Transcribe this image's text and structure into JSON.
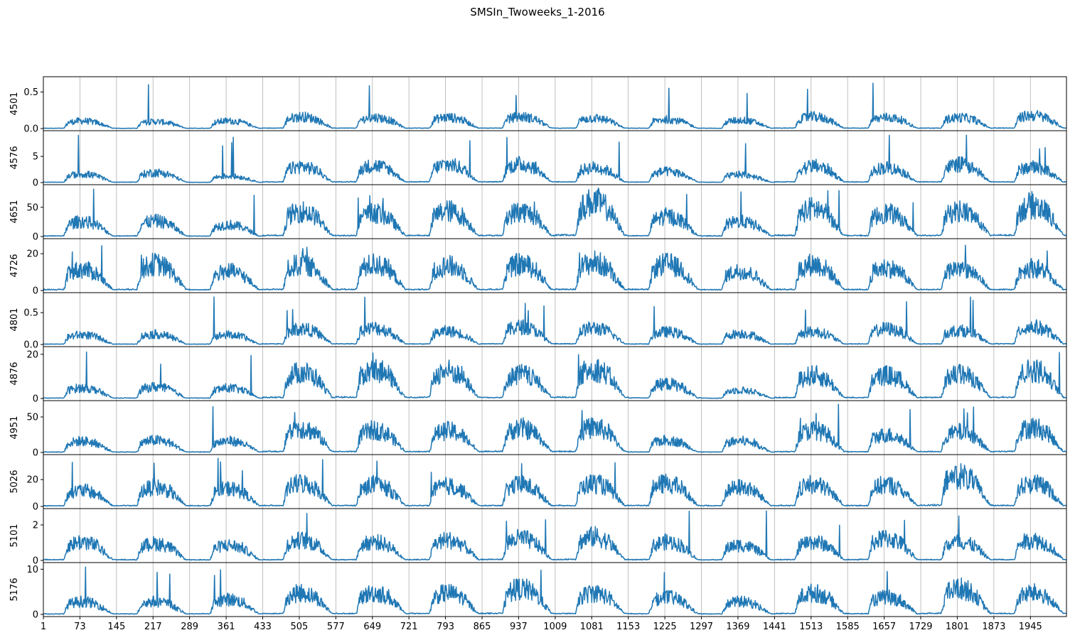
{
  "chart_data": {
    "type": "line",
    "title": "SMSIn_Twoweeks_1-2016",
    "x_range": [
      1,
      2016
    ],
    "x_ticks": [
      1,
      73,
      145,
      217,
      289,
      361,
      433,
      505,
      577,
      649,
      721,
      793,
      865,
      937,
      1009,
      1081,
      1153,
      1225,
      1297,
      1369,
      1441,
      1513,
      1585,
      1657,
      1729,
      1801,
      1873,
      1945
    ],
    "grid_x": true,
    "line_color": "#1f77b4",
    "panels": [
      {
        "name": "4501",
        "ylim": [
          0,
          0.68
        ],
        "yticks": [
          0.0,
          0.5
        ],
        "ytick_labels": [
          "0.0",
          "0.5"
        ],
        "daily_levels": [
          0.11,
          0.1,
          0.11,
          0.17,
          0.16,
          0.16,
          0.17,
          0.15,
          0.13,
          0.12,
          0.17,
          0.16,
          0.16,
          0.19
        ],
        "peak": 0.63
      },
      {
        "name": "4576",
        "ylim": [
          0,
          9.5
        ],
        "yticks": [
          0,
          5
        ],
        "ytick_labels": [
          "0",
          "5"
        ],
        "daily_levels": [
          1.7,
          2.0,
          1.3,
          3.2,
          3.4,
          3.6,
          3.7,
          3.0,
          2.2,
          1.6,
          3.3,
          3.0,
          3.6,
          3.1
        ],
        "peak": 9.1
      },
      {
        "name": "4651",
        "ylim": [
          0,
          85
        ],
        "yticks": [
          0,
          50
        ],
        "ytick_labels": [
          "0",
          "50"
        ],
        "daily_levels": [
          27,
          28,
          21,
          45,
          42,
          46,
          45,
          62,
          36,
          27,
          50,
          42,
          46,
          56
        ],
        "peak": 82
      },
      {
        "name": "4726",
        "ylim": [
          0,
          27
        ],
        "yticks": [
          0,
          20
        ],
        "ytick_labels": [
          "0",
          "20"
        ],
        "daily_levels": [
          12,
          15,
          11,
          15,
          15,
          14,
          15,
          16,
          15,
          11,
          15,
          13,
          13,
          13
        ],
        "peak": 26
      },
      {
        "name": "4801",
        "ylim": [
          0,
          0.78
        ],
        "yticks": [
          0.0,
          0.5
        ],
        "ytick_labels": [
          "0.0",
          "0.5"
        ],
        "daily_levels": [
          0.16,
          0.17,
          0.16,
          0.26,
          0.27,
          0.22,
          0.29,
          0.27,
          0.21,
          0.18,
          0.21,
          0.26,
          0.23,
          0.29
        ],
        "peak": 0.75
      },
      {
        "name": "4876",
        "ylim": [
          0,
          22.5
        ],
        "yticks": [
          0,
          20
        ],
        "ytick_labels": [
          "0",
          "20"
        ],
        "daily_levels": [
          5,
          5.5,
          5,
          12.5,
          13.5,
          13,
          11.5,
          14,
          7,
          4,
          11,
          11,
          11.5,
          13.5
        ],
        "peak": 22
      },
      {
        "name": "4951",
        "ylim": [
          0,
          70
        ],
        "yticks": [
          0,
          50
        ],
        "ytick_labels": [
          "0",
          "50"
        ],
        "daily_levels": [
          17,
          18,
          17,
          36,
          33,
          32,
          36,
          37,
          18,
          17,
          33,
          26,
          30,
          37
        ],
        "peak": 68
      },
      {
        "name": "5026",
        "ylim": [
          0,
          37
        ],
        "yticks": [
          0,
          20
        ],
        "ytick_labels": [
          "0",
          "20"
        ],
        "daily_levels": [
          12.5,
          15,
          14,
          18,
          17,
          16,
          17,
          18,
          18,
          15,
          17,
          17,
          24,
          18
        ],
        "peak": 36
      },
      {
        "name": "5101",
        "ylim": [
          0,
          2.8
        ],
        "yticks": [
          0,
          2
        ],
        "ytick_labels": [
          "0",
          "2"
        ],
        "daily_levels": [
          1.1,
          1.0,
          0.9,
          1.2,
          1.1,
          1.2,
          1.3,
          1.4,
          1.1,
          0.9,
          1.1,
          1.3,
          1.1,
          1.2
        ],
        "peak": 2.8
      },
      {
        "name": "5176",
        "ylim": [
          0,
          11
        ],
        "yticks": [
          0,
          10
        ],
        "ytick_labels": [
          "0",
          "10"
        ],
        "daily_levels": [
          3,
          3,
          3.5,
          5,
          5,
          5,
          6,
          5,
          4,
          3,
          5,
          4,
          6,
          5
        ],
        "peak": 10.5
      }
    ]
  }
}
